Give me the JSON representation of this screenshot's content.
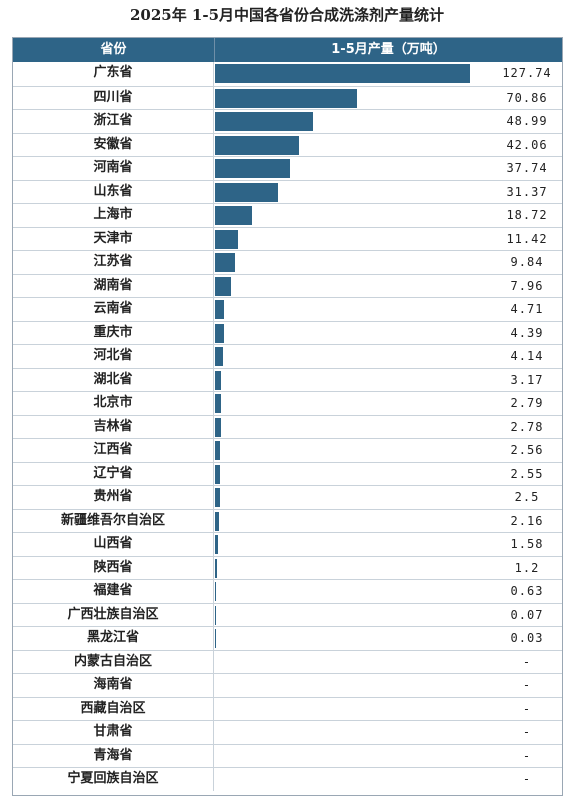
{
  "title": "2025年 1-5月中国各省份合成洗涤剂产量统计",
  "header": {
    "col1": "省份",
    "col2": "1-5月产量（万吨）"
  },
  "colors": {
    "bar": "#2e6487",
    "header_bg": "#2e6487"
  },
  "chart_data": {
    "type": "bar",
    "orientation": "horizontal",
    "max_value": 127.74,
    "rows": [
      {
        "name": "广东省",
        "value": 127.74,
        "label": "127.74"
      },
      {
        "name": "四川省",
        "value": 70.86,
        "label": "70.86"
      },
      {
        "name": "浙江省",
        "value": 48.99,
        "label": "48.99"
      },
      {
        "name": "安徽省",
        "value": 42.06,
        "label": "42.06"
      },
      {
        "name": "河南省",
        "value": 37.74,
        "label": "37.74"
      },
      {
        "name": "山东省",
        "value": 31.37,
        "label": "31.37"
      },
      {
        "name": "上海市",
        "value": 18.72,
        "label": "18.72"
      },
      {
        "name": "天津市",
        "value": 11.42,
        "label": "11.42"
      },
      {
        "name": "江苏省",
        "value": 9.84,
        "label": "9.84"
      },
      {
        "name": "湖南省",
        "value": 7.96,
        "label": "7.96"
      },
      {
        "name": "云南省",
        "value": 4.71,
        "label": "4.71"
      },
      {
        "name": "重庆市",
        "value": 4.39,
        "label": "4.39"
      },
      {
        "name": "河北省",
        "value": 4.14,
        "label": "4.14"
      },
      {
        "name": "湖北省",
        "value": 3.17,
        "label": "3.17"
      },
      {
        "name": "北京市",
        "value": 2.79,
        "label": "2.79"
      },
      {
        "name": "吉林省",
        "value": 2.78,
        "label": "2.78"
      },
      {
        "name": "江西省",
        "value": 2.56,
        "label": "2.56"
      },
      {
        "name": "辽宁省",
        "value": 2.55,
        "label": "2.55"
      },
      {
        "name": "贵州省",
        "value": 2.5,
        "label": "2.5"
      },
      {
        "name": "新疆维吾尔自治区",
        "value": 2.16,
        "label": "2.16"
      },
      {
        "name": "山西省",
        "value": 1.58,
        "label": "1.58"
      },
      {
        "name": "陕西省",
        "value": 1.2,
        "label": "1.2"
      },
      {
        "name": "福建省",
        "value": 0.63,
        "label": "0.63"
      },
      {
        "name": "广西壮族自治区",
        "value": 0.07,
        "label": "0.07"
      },
      {
        "name": "黑龙江省",
        "value": 0.03,
        "label": "0.03"
      },
      {
        "name": "内蒙古自治区",
        "value": null,
        "label": "-"
      },
      {
        "name": "海南省",
        "value": null,
        "label": "-"
      },
      {
        "name": "西藏自治区",
        "value": null,
        "label": "-"
      },
      {
        "name": "甘肃省",
        "value": null,
        "label": "-"
      },
      {
        "name": "青海省",
        "value": null,
        "label": "-"
      },
      {
        "name": "宁夏回族自治区",
        "value": null,
        "label": "-"
      }
    ]
  }
}
